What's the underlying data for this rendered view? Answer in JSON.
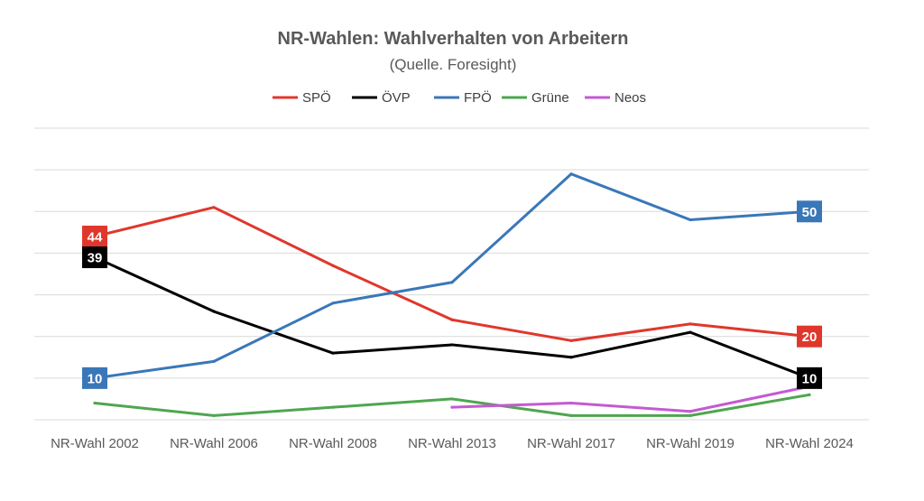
{
  "chart_data": {
    "type": "line",
    "title": "NR-Wahlen: Wahlverhalten von Arbeitern",
    "subtitle": "(Quelle. Foresight)",
    "xlabel": "",
    "ylabel": "",
    "categories": [
      "NR-Wahl 2002",
      "NR-Wahl 2006",
      "NR-Wahl 2008",
      "NR-Wahl 2013",
      "NR-Wahl 2017",
      "NR-Wahl 2019",
      "NR-Wahl 2024"
    ],
    "ylim": [
      0,
      70
    ],
    "gridlines": [
      0,
      10,
      20,
      30,
      40,
      50,
      60,
      70
    ],
    "grid": true,
    "y_tick_labels_shown": false,
    "legend_position": "top",
    "series": [
      {
        "name": "SPÖ",
        "color": "#e0372c",
        "values": [
          44,
          51,
          37,
          24,
          19,
          23,
          20
        ],
        "labels": [
          {
            "index": 0,
            "text": "44"
          },
          {
            "index": 6,
            "text": "20"
          }
        ]
      },
      {
        "name": "ÖVP",
        "color": "#000000",
        "values": [
          39,
          26,
          16,
          18,
          15,
          21,
          10
        ],
        "labels": [
          {
            "index": 0,
            "text": "39"
          },
          {
            "index": 6,
            "text": "10"
          }
        ]
      },
      {
        "name": "FPÖ",
        "color": "#3a77b8",
        "values": [
          10,
          14,
          28,
          33,
          59,
          48,
          50
        ],
        "labels": [
          {
            "index": 0,
            "text": "10"
          },
          {
            "index": 6,
            "text": "50"
          }
        ]
      },
      {
        "name": "Grüne",
        "color": "#4ea64f",
        "values": [
          4,
          1,
          3,
          5,
          1,
          1,
          6
        ],
        "labels": []
      },
      {
        "name": "Neos",
        "color": "#c45ad1",
        "values": [
          null,
          null,
          null,
          3,
          4,
          2,
          8
        ],
        "labels": []
      }
    ]
  }
}
